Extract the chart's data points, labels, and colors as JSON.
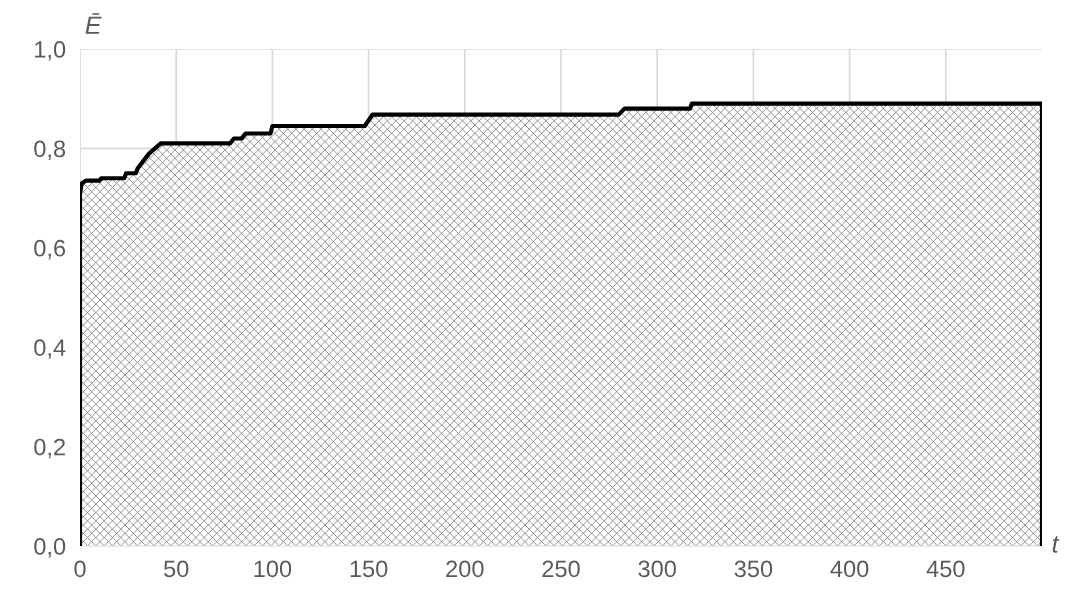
{
  "chart_data": {
    "type": "area",
    "xlabel": "t",
    "ylabel": "Ē",
    "x": [
      0,
      1,
      3,
      10,
      11,
      23,
      24,
      29,
      30,
      33,
      36,
      39,
      42,
      78,
      80,
      84,
      86,
      99,
      100,
      148,
      152,
      280,
      283,
      317,
      318,
      500
    ],
    "series": [
      {
        "color": "#000000",
        "values": [
          0.71,
          0.73,
          0.735,
          0.735,
          0.74,
          0.74,
          0.75,
          0.75,
          0.76,
          0.775,
          0.79,
          0.8,
          0.81,
          0.81,
          0.82,
          0.82,
          0.83,
          0.83,
          0.845,
          0.845,
          0.868,
          0.868,
          0.88,
          0.88,
          0.89,
          0.89
        ]
      }
    ],
    "xlim": [
      0,
      500
    ],
    "xticks": [
      0,
      50,
      100,
      150,
      200,
      250,
      300,
      350,
      400,
      450
    ],
    "ylim": [
      0,
      1.0
    ],
    "yticks": [
      {
        "value": 0,
        "label": "0,0"
      },
      {
        "value": 0.2,
        "label": "0,2"
      },
      {
        "value": 0.4,
        "label": "0,4"
      },
      {
        "value": 0.6,
        "label": "0,6"
      },
      {
        "value": 0.8,
        "label": "0,8"
      },
      {
        "value": 1.0,
        "label": "1,0"
      }
    ],
    "grid": true,
    "legend": false
  }
}
